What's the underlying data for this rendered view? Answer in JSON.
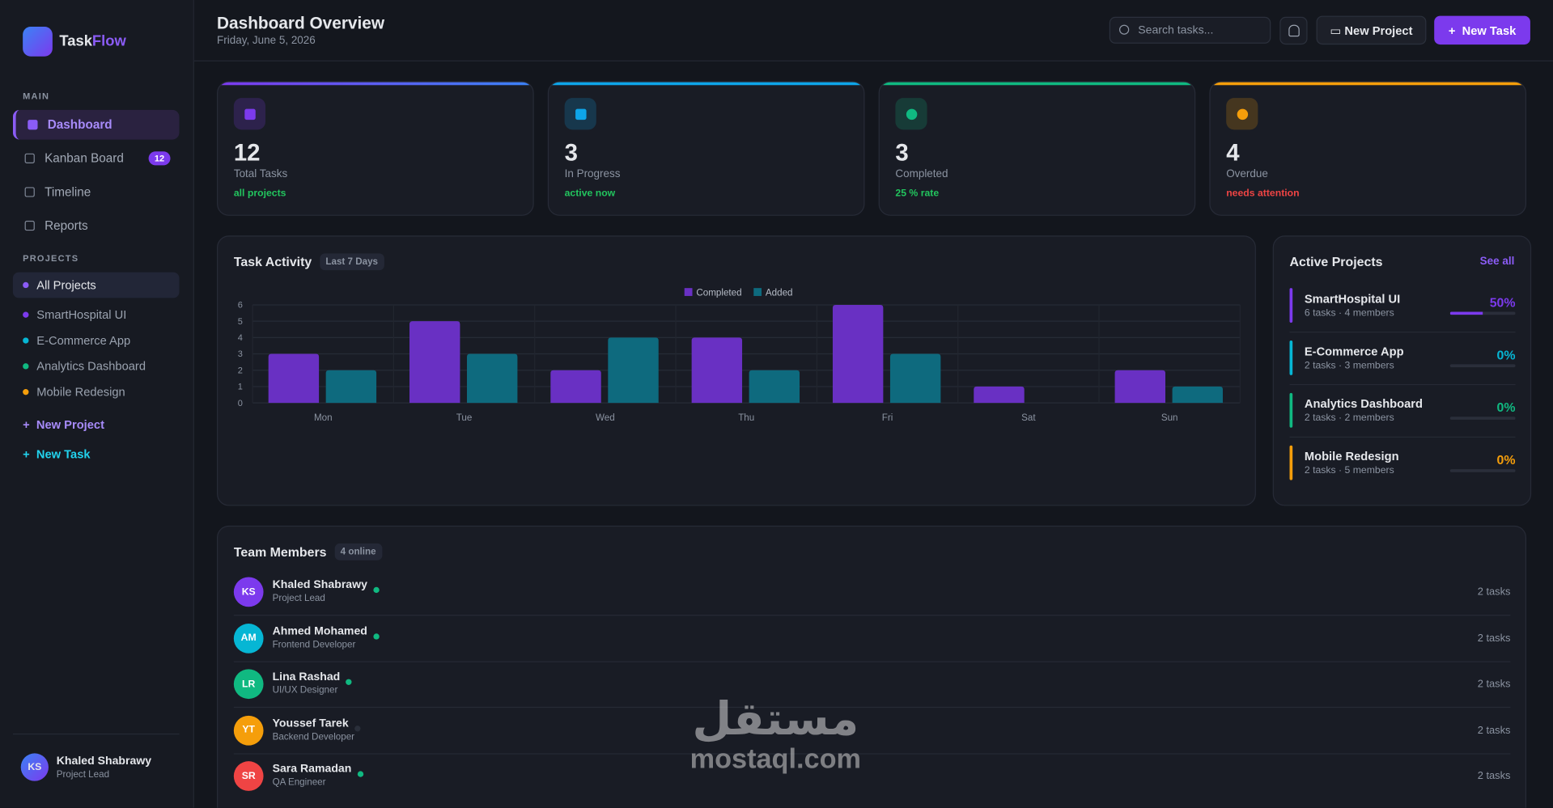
{
  "sidebar": {
    "brand": {
      "part1": "Task",
      "part2": "Flow"
    },
    "main_label": "MAIN",
    "nav": [
      {
        "label": "Dashboard"
      },
      {
        "label": "Kanban Board",
        "badge": 12
      },
      {
        "label": "Timeline"
      },
      {
        "label": "Reports"
      }
    ],
    "projects_label": "PROJECTS",
    "projects": [
      {
        "name": "All Projects",
        "color": "#8b5cf6"
      },
      {
        "name": "SmartHospital UI",
        "color": "#7c3aed"
      },
      {
        "name": "E-Commerce App",
        "color": "#06b6d4"
      },
      {
        "name": "Analytics Dashboard",
        "color": "#10b981"
      },
      {
        "name": "Mobile Redesign",
        "color": "#f59e0b"
      }
    ],
    "actions": [
      "New Project",
      "New Task"
    ],
    "user": {
      "initials": "KS",
      "name": "Khaled Shabrawy",
      "role": "Project Lead"
    }
  },
  "header": {
    "title": "Dashboard Overview",
    "date": "Friday, June 5, 2026",
    "search_placeholder": "Search tasks...",
    "buttons": [
      "New Project",
      "New Task"
    ]
  },
  "stats": [
    {
      "value": 12,
      "label": "Total Tasks",
      "note": "all projects",
      "accent": "#7c3aed",
      "note_color": "#22c55e"
    },
    {
      "value": 3,
      "label": "In Progress",
      "note": "active now",
      "accent": "#0ea5e9",
      "note_color": "#22c55e"
    },
    {
      "value": 3,
      "label": "Completed",
      "note": "25 % rate",
      "accent": "#10b981",
      "note_color": "#22c55e"
    },
    {
      "value": 4,
      "label": "Overdue",
      "note": "needs attention",
      "accent": "#f59e0b",
      "note_color": "#ef4444"
    }
  ],
  "chart_data": {
    "type": "bar",
    "title": "Task Activity",
    "badge": "Last 7 Days",
    "categories": [
      "Mon",
      "Tue",
      "Wed",
      "Thu",
      "Fri",
      "Sat",
      "Sun"
    ],
    "series": [
      {
        "name": "Completed",
        "color": "#6930c3",
        "values": [
          3,
          5,
          2,
          4,
          6,
          1,
          2
        ]
      },
      {
        "name": "Added",
        "color": "#0e6a7e",
        "values": [
          2,
          3,
          4,
          2,
          3,
          0,
          1
        ]
      }
    ],
    "ylim": [
      0,
      6
    ],
    "yticks": [
      0,
      1,
      2,
      3,
      4,
      5,
      6
    ],
    "grid": true,
    "legend": "top"
  },
  "active_projects": {
    "title": "Active Projects",
    "link": "See all",
    "items": [
      {
        "name": "SmartHospital UI",
        "meta": "6 tasks · 4 members",
        "progress": 50,
        "progress_label": "50%",
        "color": "#7c3aed"
      },
      {
        "name": "E-Commerce App",
        "meta": "2 tasks · 3 members",
        "progress": 0,
        "progress_label": "0%",
        "color": "#06b6d4"
      },
      {
        "name": "Analytics Dashboard",
        "meta": "2 tasks · 2 members",
        "progress": 0,
        "progress_label": "0%",
        "color": "#10b981"
      },
      {
        "name": "Mobile Redesign",
        "meta": "2 tasks · 5 members",
        "progress": 0,
        "progress_label": "0%",
        "color": "#f59e0b"
      }
    ]
  },
  "team": {
    "title": "Team Members",
    "badge": "4 online",
    "members": [
      {
        "initials": "KS",
        "name": "Khaled Shabrawy",
        "role": "Project Lead",
        "tasks": "2 tasks",
        "online": true,
        "color": "#7c3aed"
      },
      {
        "initials": "AM",
        "name": "Ahmed Mohamed",
        "role": "Frontend Developer",
        "tasks": "2 tasks",
        "online": true,
        "color": "#06b6d4"
      },
      {
        "initials": "LR",
        "name": "Lina Rashad",
        "role": "UI/UX Designer",
        "tasks": "2 tasks",
        "online": true,
        "color": "#10b981"
      },
      {
        "initials": "YT",
        "name": "Youssef Tarek",
        "role": "Backend Developer",
        "tasks": "2 tasks",
        "online": false,
        "color": "#f59e0b"
      },
      {
        "initials": "SR",
        "name": "Sara Ramadan",
        "role": "QA Engineer",
        "tasks": "2 tasks",
        "online": true,
        "color": "#ef4444"
      }
    ]
  },
  "watermark": {
    "arabic": "مستقل",
    "latin": "mostaql.com"
  }
}
